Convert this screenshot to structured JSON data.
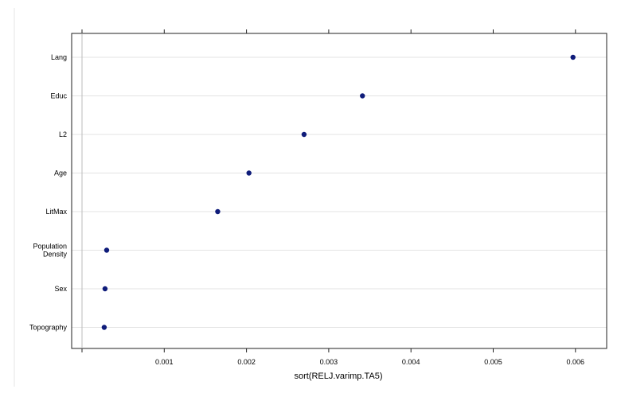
{
  "chart_data": {
    "type": "scatter",
    "subtype": "dot-plot",
    "title": "",
    "xlabel": "sort(RELJ.varimp.TA5)",
    "ylabel": "",
    "xlim": [
      0,
      0.00625
    ],
    "xticks": [
      0.001,
      0.002,
      0.003,
      0.004,
      0.005,
      0.006
    ],
    "xtick_labels": [
      "0.001",
      "0.002",
      "0.003",
      "0.004",
      "0.005",
      "0.006"
    ],
    "grid": true,
    "legend": "none",
    "point_color": "#0f1c7a",
    "categories": [
      "Lang",
      "Educ",
      "L2",
      "Age",
      "LitMax",
      "Population Density",
      "Sex",
      "Topography"
    ],
    "category_labels": [
      [
        "Lang"
      ],
      [
        "Educ"
      ],
      [
        "L2"
      ],
      [
        "Age"
      ],
      [
        "LitMax"
      ],
      [
        "Population",
        "Density"
      ],
      [
        "Sex"
      ],
      [
        "Topography"
      ]
    ],
    "values": [
      0.00597,
      0.00341,
      0.0027,
      0.00203,
      0.00165,
      0.0003,
      0.00028,
      0.00027
    ]
  }
}
